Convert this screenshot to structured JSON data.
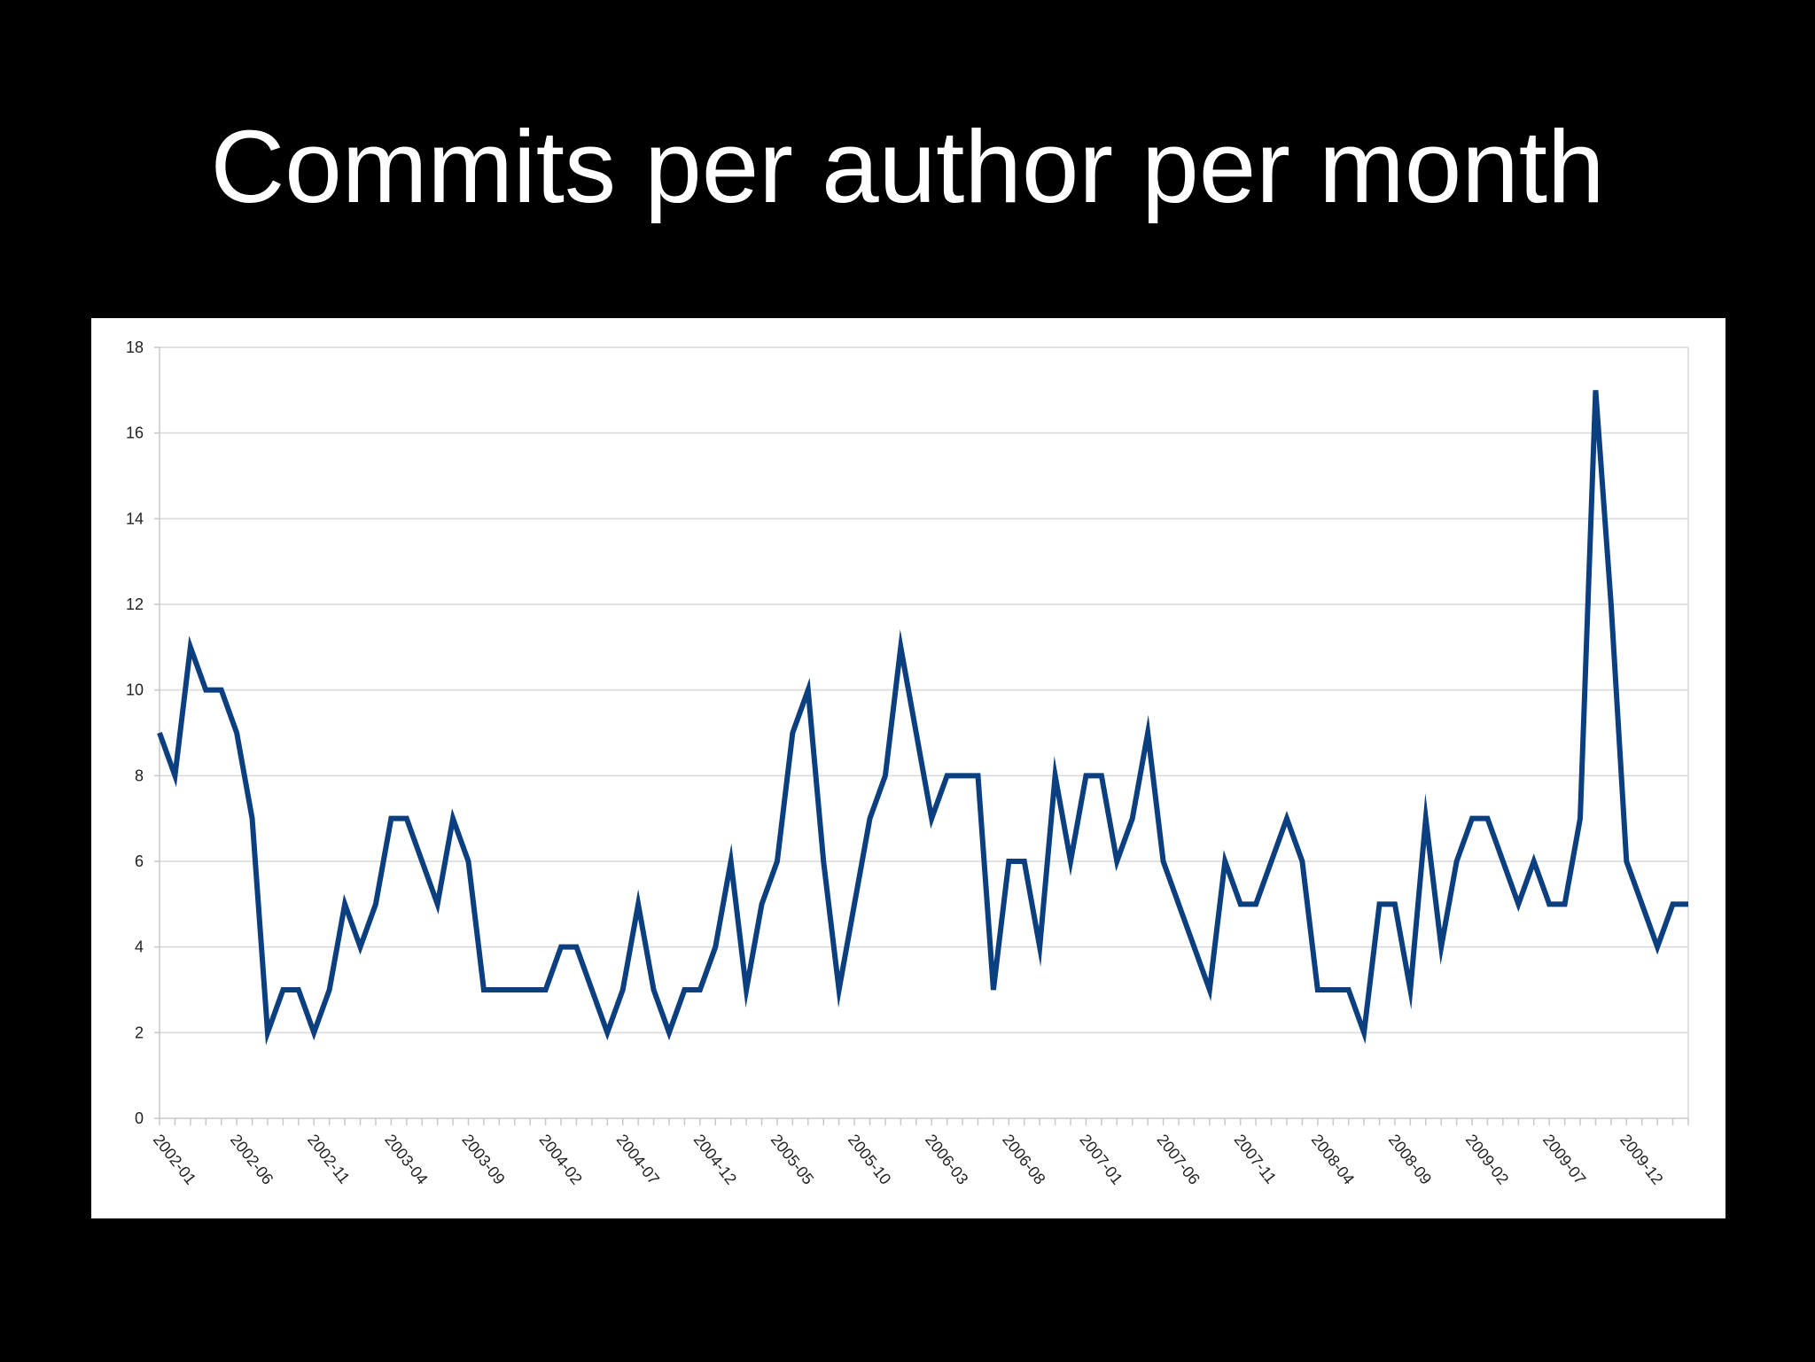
{
  "slide": {
    "title": "Commits per author per month"
  },
  "chart_data": {
    "type": "line",
    "title": "",
    "xlabel": "",
    "ylabel": "",
    "ylim": [
      0,
      18
    ],
    "yticks": [
      0,
      2,
      4,
      6,
      8,
      10,
      12,
      14,
      16,
      18
    ],
    "grid": "horizontal",
    "legend": "none",
    "line_color": "#0b3f7f",
    "x_tick_labels": [
      "2002-01",
      "2002-06",
      "2002-11",
      "2003-04",
      "2003-09",
      "2004-02",
      "2004-07",
      "2004-12",
      "2005-05",
      "2005-10",
      "2006-03",
      "2006-08",
      "2007-01",
      "2007-06",
      "2007-11",
      "2008-04",
      "2008-09",
      "2009-02",
      "2009-07",
      "2009-12"
    ],
    "x": [
      "2002-01",
      "2002-02",
      "2002-03",
      "2002-04",
      "2002-05",
      "2002-06",
      "2002-07",
      "2002-08",
      "2002-09",
      "2002-10",
      "2002-11",
      "2002-12",
      "2003-01",
      "2003-02",
      "2003-03",
      "2003-04",
      "2003-05",
      "2003-06",
      "2003-07",
      "2003-08",
      "2003-09",
      "2003-10",
      "2003-11",
      "2003-12",
      "2004-01",
      "2004-02",
      "2004-03",
      "2004-04",
      "2004-05",
      "2004-06",
      "2004-07",
      "2004-08",
      "2004-09",
      "2004-10",
      "2004-11",
      "2004-12",
      "2005-01",
      "2005-02",
      "2005-03",
      "2005-04",
      "2005-05",
      "2005-06",
      "2005-07",
      "2005-08",
      "2005-09",
      "2005-10",
      "2005-11",
      "2005-12",
      "2006-01",
      "2006-02",
      "2006-03",
      "2006-04",
      "2006-05",
      "2006-06",
      "2006-07",
      "2006-08",
      "2006-09",
      "2006-10",
      "2006-11",
      "2006-12",
      "2007-01",
      "2007-02",
      "2007-03",
      "2007-04",
      "2007-05",
      "2007-06",
      "2007-07",
      "2007-08",
      "2007-09",
      "2007-10",
      "2007-11",
      "2007-12",
      "2008-01",
      "2008-02",
      "2008-03",
      "2008-04",
      "2008-05",
      "2008-06",
      "2008-07",
      "2008-08",
      "2008-09",
      "2008-10",
      "2008-11",
      "2008-12",
      "2009-01",
      "2009-02",
      "2009-03",
      "2009-04",
      "2009-05",
      "2009-06",
      "2009-07",
      "2009-08",
      "2009-09",
      "2009-10",
      "2009-11",
      "2009-12",
      "2010-01",
      "2010-02",
      "2010-03",
      "2010-04"
    ],
    "values": [
      9,
      8,
      11,
      10,
      10,
      9,
      7,
      2,
      3,
      3,
      2,
      3,
      5,
      4,
      5,
      7,
      7,
      6,
      5,
      7,
      6,
      3,
      3,
      3,
      3,
      3,
      4,
      4,
      3,
      2,
      3,
      5,
      3,
      2,
      3,
      3,
      4,
      6,
      3,
      5,
      6,
      9,
      10,
      6,
      3,
      5,
      7,
      8,
      11,
      9,
      7,
      8,
      8,
      8,
      3,
      6,
      6,
      4,
      8,
      6,
      8,
      8,
      6,
      7,
      9,
      6,
      5,
      4,
      3,
      6,
      5,
      5,
      6,
      7,
      6,
      3,
      3,
      3,
      2,
      5,
      5,
      3,
      7,
      4,
      6,
      7,
      7,
      6,
      5,
      6,
      5,
      5,
      7,
      17,
      12,
      6,
      5,
      4,
      5,
      5
    ]
  }
}
